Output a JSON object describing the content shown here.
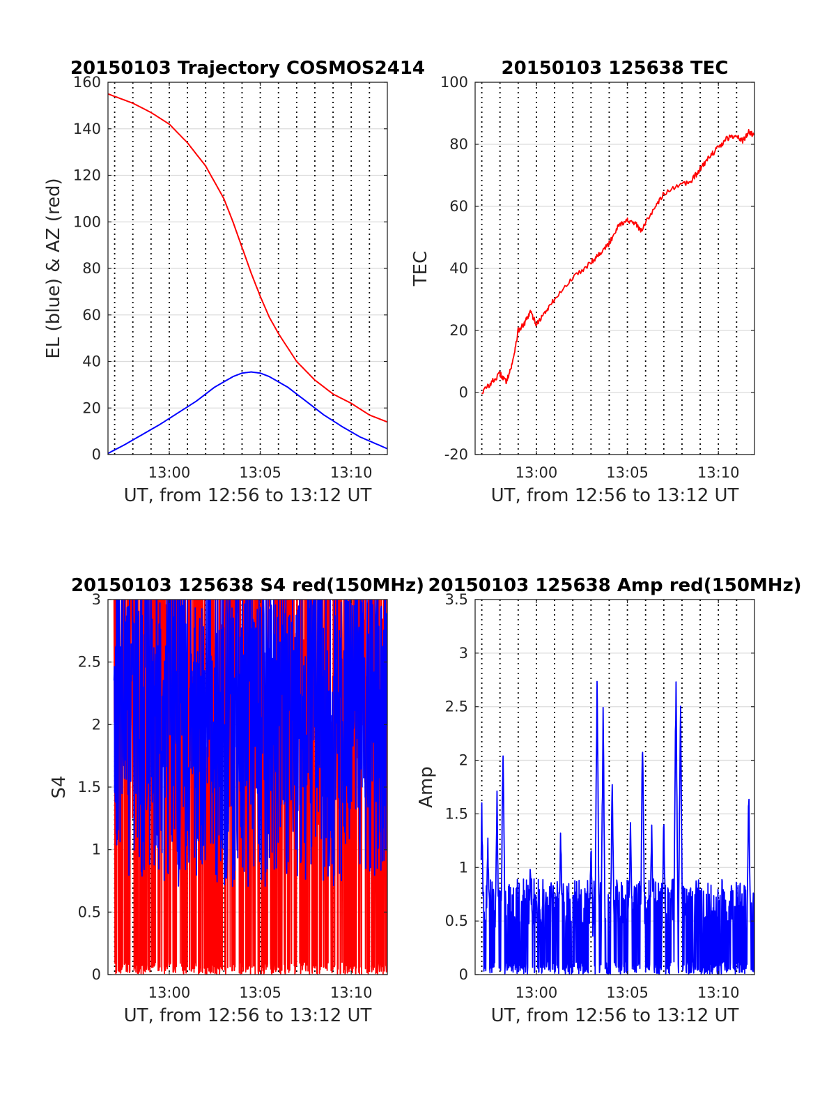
{
  "chart_data": [
    {
      "id": "traj",
      "type": "line",
      "title": "20150103 Trajectory COSMOS2414",
      "xlabel": "UT, from 12:56 to 13:12 UT",
      "ylabel": "EL (blue) & AZ (red)",
      "xlim": [
        "12:56:38",
        "13:11:59"
      ],
      "ylim": [
        0,
        160
      ],
      "yticks": [
        "0",
        "20",
        "40",
        "60",
        "80",
        "100",
        "120",
        "140",
        "160"
      ],
      "xticks": [
        {
          "at": "13:00",
          "label": "13:00"
        },
        {
          "at": "13:05",
          "label": "13:05"
        },
        {
          "at": "13:10",
          "label": "13:10"
        }
      ],
      "dotted_vlines_every_min": 1,
      "grid": "horizontal",
      "series": [
        {
          "color": "#ff0000",
          "x": [
            "12:56:38",
            "12:58:00",
            "12:59:00",
            "13:00:00",
            "13:01:00",
            "13:02:00",
            "13:03:00",
            "13:03:30",
            "13:04:00",
            "13:04:30",
            "13:05:00",
            "13:05:30",
            "13:06:00",
            "13:07:00",
            "13:08:00",
            "13:09:00",
            "13:10:00",
            "13:11:00",
            "13:11:59"
          ],
          "y": [
            155,
            151,
            147,
            142,
            134,
            124,
            110,
            100,
            89,
            78,
            68,
            59,
            52,
            40,
            32,
            26,
            22,
            17,
            14
          ]
        },
        {
          "color": "#0000ff",
          "x": [
            "12:56:38",
            "12:57:30",
            "12:58:30",
            "12:59:30",
            "13:00:30",
            "13:01:30",
            "13:02:30",
            "13:03:30",
            "13:04:00",
            "13:04:30",
            "13:05:00",
            "13:05:30",
            "13:06:30",
            "13:07:30",
            "13:08:30",
            "13:09:30",
            "13:10:30",
            "13:11:59"
          ],
          "y": [
            0.5,
            4,
            8.5,
            13,
            18,
            23,
            29,
            33.5,
            35,
            35.5,
            35,
            33.5,
            29,
            23,
            17,
            12,
            7.5,
            2.5
          ]
        }
      ]
    },
    {
      "id": "tec",
      "type": "line",
      "title": "20150103 125638 TEC",
      "xlabel": "UT, from 12:56 to 13:12 UT",
      "ylabel": "TEC",
      "xlim": [
        "12:56:38",
        "13:11:59"
      ],
      "ylim": [
        -20,
        100
      ],
      "yticks": [
        "-20",
        "0",
        "20",
        "40",
        "60",
        "80",
        "100"
      ],
      "xticks": [
        {
          "at": "13:00",
          "label": "13:00"
        },
        {
          "at": "13:05",
          "label": "13:05"
        },
        {
          "at": "13:10",
          "label": "13:10"
        }
      ],
      "dotted_vlines_every_min": 1,
      "grid": "horizontal",
      "series": [
        {
          "color": "#ff0000",
          "x": [
            "12:57:00",
            "12:57:30",
            "12:58:00",
            "12:58:20",
            "12:58:40",
            "12:59:00",
            "12:59:20",
            "12:59:40",
            "13:00:00",
            "13:00:30",
            "13:01:00",
            "13:02:00",
            "13:03:00",
            "13:03:30",
            "13:04:00",
            "13:04:30",
            "13:05:00",
            "13:05:30",
            "13:05:45",
            "13:06:30",
            "13:07:00",
            "13:08:00",
            "13:08:30",
            "13:09:00",
            "13:09:30",
            "13:10:00",
            "13:10:30",
            "13:11:00",
            "13:11:20",
            "13:11:40",
            "13:11:59"
          ],
          "y": [
            0,
            3,
            6,
            3.5,
            9,
            20,
            22,
            26,
            22,
            26,
            30,
            37,
            42,
            45,
            48,
            54,
            55.5,
            54,
            52,
            60,
            64,
            67,
            68,
            72,
            76,
            79,
            82,
            83,
            81,
            84,
            83
          ]
        }
      ]
    },
    {
      "id": "s4",
      "type": "line",
      "title": "20150103 125638 S4 red(150MHz)",
      "xlabel": "UT, from 12:56 to 13:12 UT",
      "ylabel": "S4",
      "xlim": [
        "12:56:38",
        "13:11:59"
      ],
      "ylim": [
        0,
        3
      ],
      "yticks": [
        "0",
        "0.5",
        "1",
        "1.5",
        "2",
        "2.5",
        "3"
      ],
      "xticks": [
        {
          "at": "13:00",
          "label": "13:00"
        },
        {
          "at": "13:05",
          "label": "13:05"
        },
        {
          "at": "13:10",
          "label": "13:10"
        }
      ],
      "dotted_vlines_every_min": 1,
      "grid": "horizontal",
      "series": [
        {
          "color": "#ff0000",
          "noise": {
            "min": 0,
            "max": 3,
            "mean": 1.6
          }
        },
        {
          "color": "#0000ff",
          "noise": {
            "min": 0.7,
            "max": 3,
            "mean": 2.0
          }
        }
      ]
    },
    {
      "id": "amp",
      "type": "line",
      "title": "20150103 125638 Amp red(150MHz)",
      "xlabel": "UT, from 12:56 to 13:12 UT",
      "ylabel": "Amp",
      "xlim": [
        "12:56:38",
        "13:11:59"
      ],
      "ylim": [
        0,
        3.5
      ],
      "yticks": [
        "0",
        "0.5",
        "1",
        "1.5",
        "2",
        "2.5",
        "3",
        "3.5"
      ],
      "xticks": [
        {
          "at": "13:00",
          "label": "13:00"
        },
        {
          "at": "13:05",
          "label": "13:05"
        },
        {
          "at": "13:10",
          "label": "13:10"
        }
      ],
      "dotted_vlines_every_min": 1,
      "grid": "horizontal",
      "series": [
        {
          "color": "#0000ff",
          "noise": {
            "min": 0,
            "base": 0.85
          },
          "peaks": {
            "x": [
              "12:57:00",
              "12:57:20",
              "12:57:50",
              "12:58:10",
              "12:59:40",
              "13:01:20",
              "13:03:00",
              "13:03:20",
              "13:03:40",
              "13:04:10",
              "13:05:10",
              "13:05:50",
              "13:06:20",
              "13:07:00",
              "13:07:40",
              "13:07:55",
              "13:11:40"
            ],
            "y": [
              1.65,
              1.35,
              1.75,
              2.3,
              1.15,
              1.42,
              1.35,
              3.0,
              2.6,
              1.95,
              1.55,
              2.43,
              1.45,
              1.55,
              3.0,
              2.8,
              1.87
            ]
          }
        }
      ]
    }
  ]
}
